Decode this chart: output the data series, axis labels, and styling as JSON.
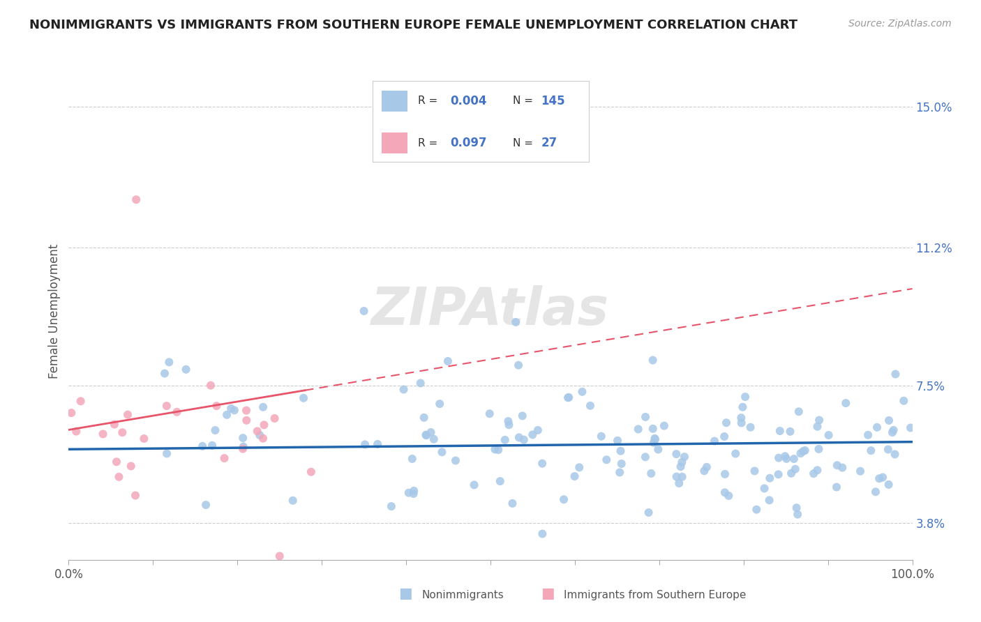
{
  "title": "NONIMMIGRANTS VS IMMIGRANTS FROM SOUTHERN EUROPE FEMALE UNEMPLOYMENT CORRELATION CHART",
  "source": "Source: ZipAtlas.com",
  "ylabel": "Female Unemployment",
  "right_yticks": [
    3.8,
    7.5,
    11.2,
    15.0
  ],
  "right_ytick_labels": [
    "3.8%",
    "7.5%",
    "11.2%",
    "15.0%"
  ],
  "xlim": [
    0.0,
    100.0
  ],
  "ylim": [
    2.8,
    16.2
  ],
  "blue_R": "0.004",
  "blue_N": "145",
  "pink_R": "0.097",
  "pink_N": "27",
  "blue_color": "#a8c8e8",
  "pink_color": "#f4a7b9",
  "blue_line_color": "#2166ac",
  "pink_line_color": "#e8546a",
  "legend_label_blue": "Nonimmigrants",
  "legend_label_pink": "Immigrants from Southern Europe",
  "watermark": "ZIPAtlas",
  "grid_color": "#cccccc",
  "title_fontsize": 13,
  "source_fontsize": 10,
  "tick_fontsize": 12,
  "ylabel_fontsize": 12
}
